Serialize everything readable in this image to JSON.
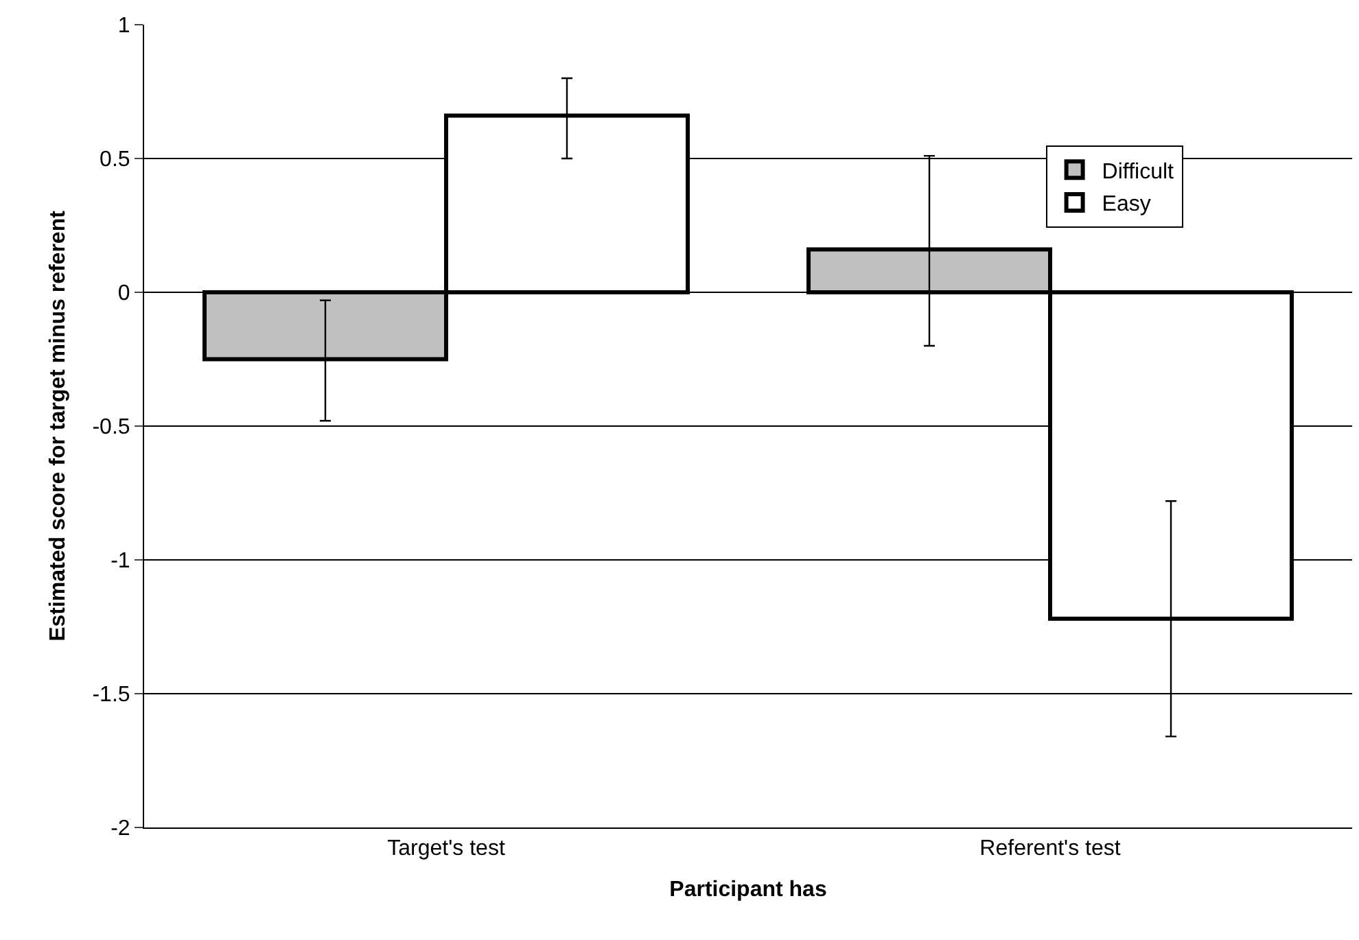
{
  "chart_data": {
    "type": "bar",
    "xlabel": "Participant has",
    "ylabel": "Estimated score for target minus referent",
    "categories": [
      "Target's test",
      "Referent's test"
    ],
    "series": [
      {
        "name": "Difficult",
        "color": "#c0c0c0",
        "values": [
          -0.25,
          0.16
        ],
        "errors": [
          [
            -0.48,
            -0.03
          ],
          [
            -0.2,
            0.51
          ]
        ]
      },
      {
        "name": "Easy",
        "color": "#ffffff",
        "values": [
          0.66,
          -1.22
        ],
        "errors": [
          [
            0.5,
            0.8
          ],
          [
            -1.66,
            -0.78
          ]
        ]
      }
    ],
    "ylim": [
      -2,
      1
    ],
    "yticks": [
      -2,
      -1.5,
      -1,
      -0.5,
      0,
      0.5,
      1
    ],
    "grid": "y",
    "legend": "top right"
  }
}
